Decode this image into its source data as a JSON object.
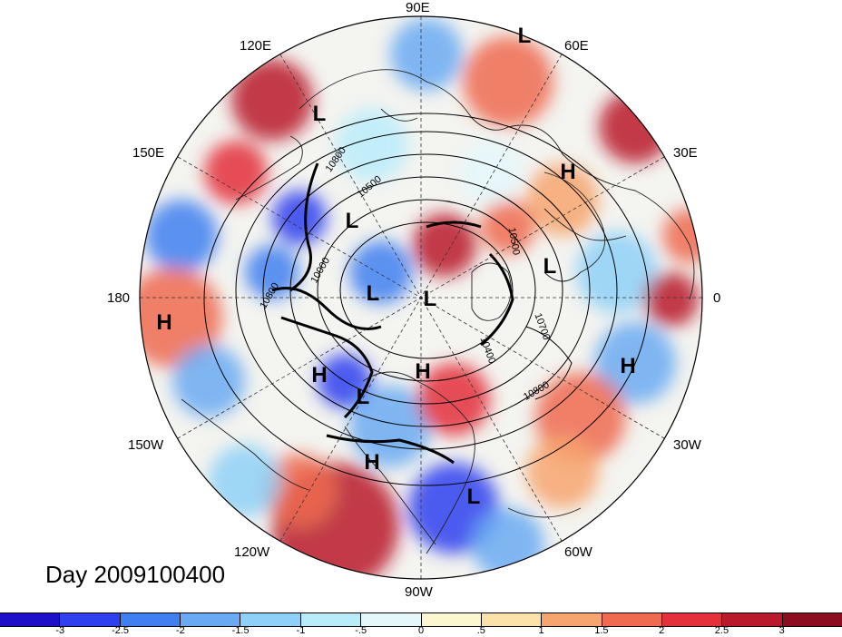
{
  "title": "Day 2009100400",
  "longitude_labels": [
    "90E",
    "60E",
    "30E",
    "0",
    "30W",
    "60W",
    "90W",
    "120W",
    "150W",
    "180",
    "150E",
    "120E"
  ],
  "pressure_centers": [
    {
      "type": "L",
      "region": "east siberia top"
    },
    {
      "type": "L",
      "region": "okhotsk"
    },
    {
      "type": "H",
      "region": "ural"
    },
    {
      "type": "L",
      "region": "arctic siberia"
    },
    {
      "type": "L",
      "region": "scandinavia"
    },
    {
      "type": "L",
      "region": "arctic central"
    },
    {
      "type": "L",
      "region": "pole"
    },
    {
      "type": "H",
      "region": "pacific west"
    },
    {
      "type": "H",
      "region": "gulf of alaska"
    },
    {
      "type": "H",
      "region": "atlantic"
    },
    {
      "type": "H",
      "region": "hudson"
    },
    {
      "type": "L",
      "region": "alaska"
    },
    {
      "type": "H",
      "region": "north america"
    },
    {
      "type": "L",
      "region": "caribbean"
    }
  ],
  "contour_labels": [
    "10800",
    "10500",
    "10500",
    "10700",
    "10800",
    "10400",
    "10800",
    "10000"
  ],
  "colorbar": {
    "ticks": [
      "-3",
      "-2.5",
      "-2",
      "-1.5",
      "-1",
      "-.5",
      "0",
      ".5",
      "1",
      "1.5",
      "2",
      "2.5",
      "3"
    ],
    "colors": [
      "#1e0fc8",
      "#2f40ee",
      "#3f7ff0",
      "#6aaaf2",
      "#8ed0f7",
      "#b9ecfb",
      "#e4f7fb",
      "#fdf7d0",
      "#fbe2a8",
      "#f7a56e",
      "#ef6a50",
      "#e3303a",
      "#b81a2c",
      "#8c0d1f"
    ]
  }
}
